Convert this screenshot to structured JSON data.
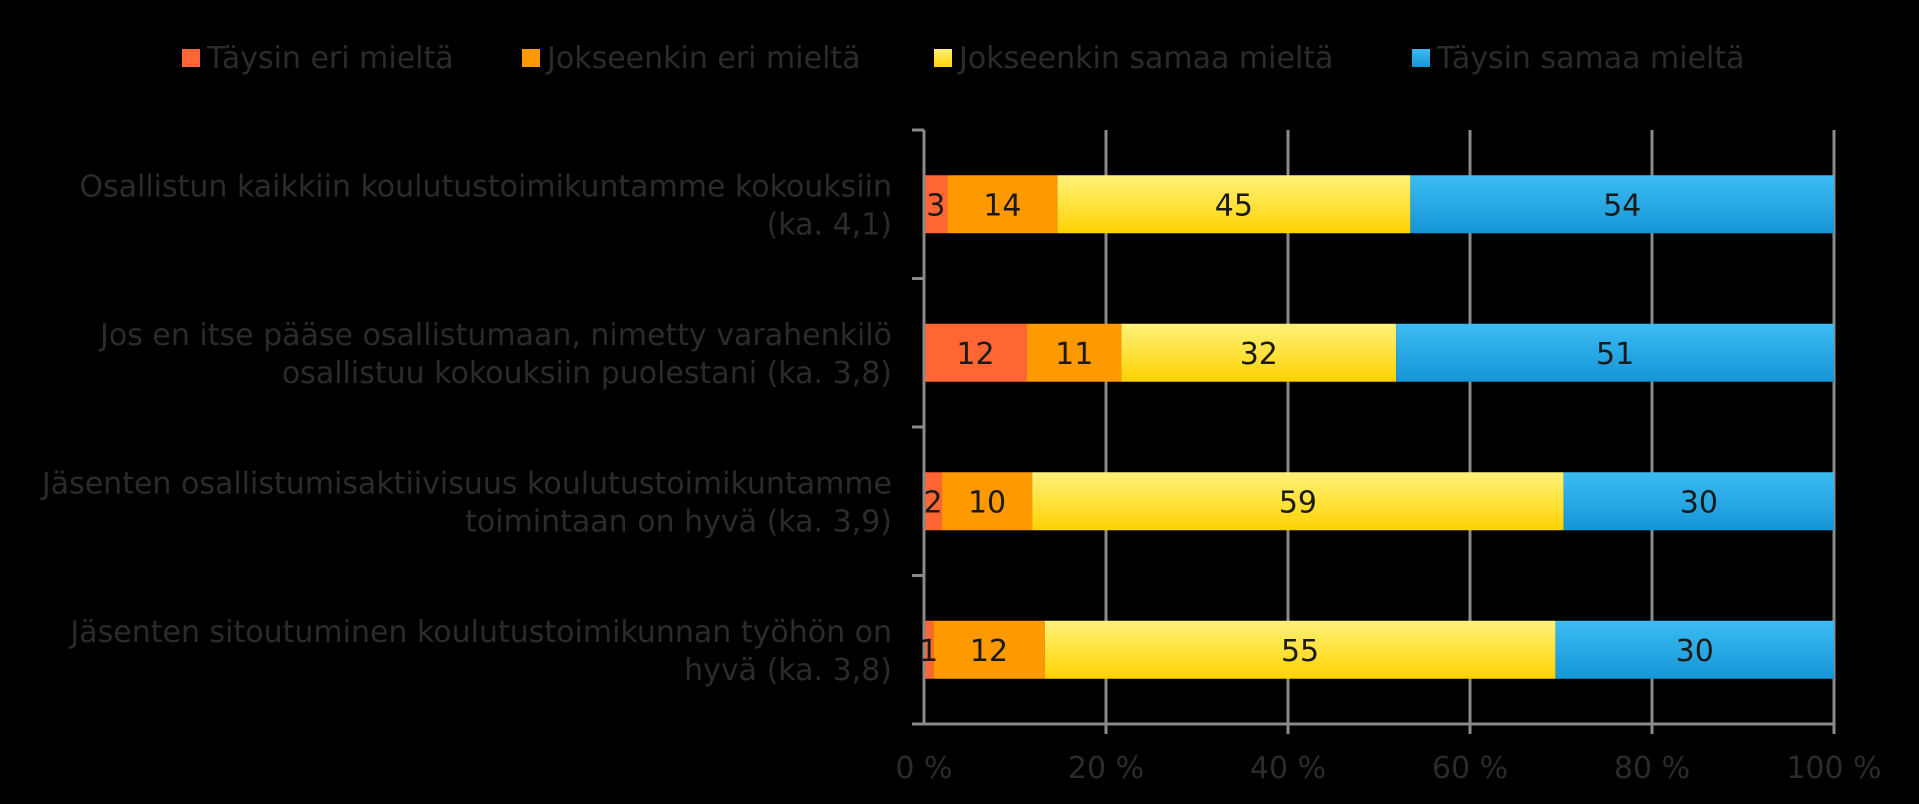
{
  "chart_data": {
    "type": "bar",
    "orientation": "horizontal",
    "stacked": "percent",
    "categories": [
      [
        "Osallistun kaikkiin koulutustoimikuntamme kokouksiin",
        "(ka. 4,1)"
      ],
      [
        "Jos en itse pääse osallistumaan, nimetty varahenkilö",
        "osallistuu kokouksiin puolestani (ka. 3,8)"
      ],
      [
        "Jäsenten osallistumisaktiivisuus koulutustoimikuntamme",
        "toimintaan on hyvä (ka. 3,9)"
      ],
      [
        "Jäsenten sitoutuminen koulutustoimikunnan työhön on",
        "hyvä (ka. 3,8)"
      ]
    ],
    "series": [
      {
        "name": "Täysin eri mieltä",
        "color": "#FF6633",
        "values": [
          3,
          12,
          2,
          1
        ]
      },
      {
        "name": "Jokseenkin eri mieltä",
        "color": "#FF9900",
        "values": [
          14,
          11,
          10,
          12
        ]
      },
      {
        "name": "Jokseenkin samaa mieltä",
        "color": "#FFE033",
        "values": [
          45,
          32,
          59,
          55
        ]
      },
      {
        "name": "Täysin samaa mieltä",
        "color": "#1AA7E6",
        "values": [
          54,
          51,
          30,
          30
        ]
      }
    ],
    "xlim": [
      0,
      100
    ],
    "xticks": [
      "0 %",
      "20 %",
      "40 %",
      "60 %",
      "80 %",
      "100 %"
    ],
    "grid": "vertical",
    "legend": "top"
  }
}
